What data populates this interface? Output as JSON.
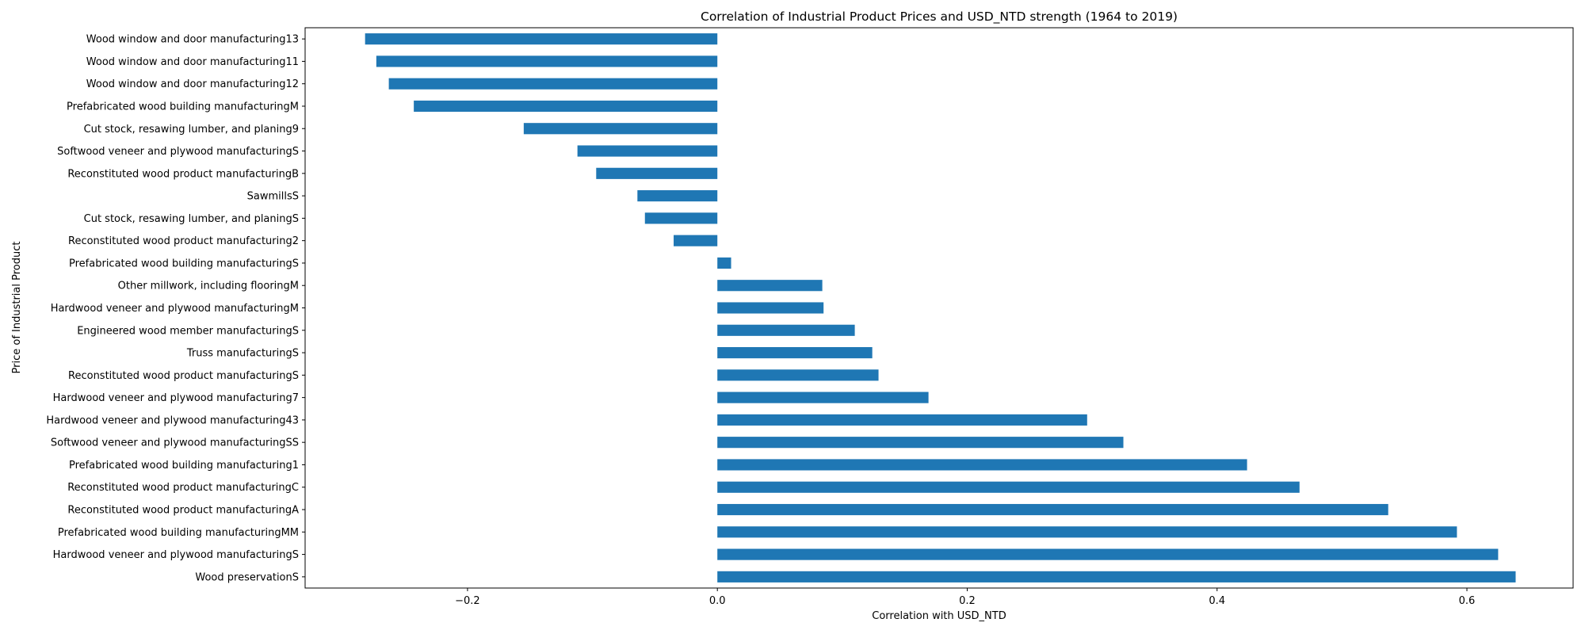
{
  "chart_data": {
    "type": "bar",
    "orientation": "horizontal",
    "title": "Correlation of Industrial Product Prices and USD_NTD strength (1964 to 2019)",
    "xlabel": "Correlation with USD_NTD",
    "ylabel": "Price of Industrial Product",
    "xlim": [
      -0.33,
      0.685
    ],
    "xticks": [
      -0.2,
      0.0,
      0.2,
      0.4,
      0.6
    ],
    "xtick_labels": [
      "−0.2",
      "0.0",
      "0.2",
      "0.4",
      "0.6"
    ],
    "grid": false,
    "bar_color": "#1f77b4",
    "categories": [
      "Wood window and door manufacturing13",
      "Wood window and door manufacturing11",
      "Wood window and door manufacturing12",
      "Prefabricated wood building manufacturingM",
      "Cut stock, resawing lumber, and planing9",
      "Softwood veneer and plywood manufacturingS",
      "Reconstituted wood product manufacturingB",
      "SawmillsS",
      "Cut stock, resawing lumber, and planingS",
      "Reconstituted wood product manufacturing2",
      "Prefabricated wood building manufacturingS",
      "Other millwork, including flooringM",
      "Hardwood veneer and plywood manufacturingM",
      "Engineered wood member manufacturingS",
      "Truss manufacturingS",
      "Reconstituted wood product manufacturingS",
      "Hardwood veneer and plywood manufacturing7",
      "Hardwood veneer and plywood manufacturing43",
      "Softwood veneer and plywood manufacturingSS",
      "Prefabricated wood building manufacturing1",
      "Reconstituted wood product manufacturingC",
      "Reconstituted wood product manufacturingA",
      "Prefabricated wood building manufacturingMM",
      "Hardwood veneer and plywood manufacturingS",
      "Wood preservationS"
    ],
    "values": [
      -0.282,
      -0.273,
      -0.263,
      -0.243,
      -0.155,
      -0.112,
      -0.097,
      -0.064,
      -0.058,
      -0.035,
      0.011,
      0.084,
      0.085,
      0.11,
      0.124,
      0.129,
      0.169,
      0.296,
      0.325,
      0.424,
      0.466,
      0.537,
      0.592,
      0.625,
      0.639
    ]
  }
}
